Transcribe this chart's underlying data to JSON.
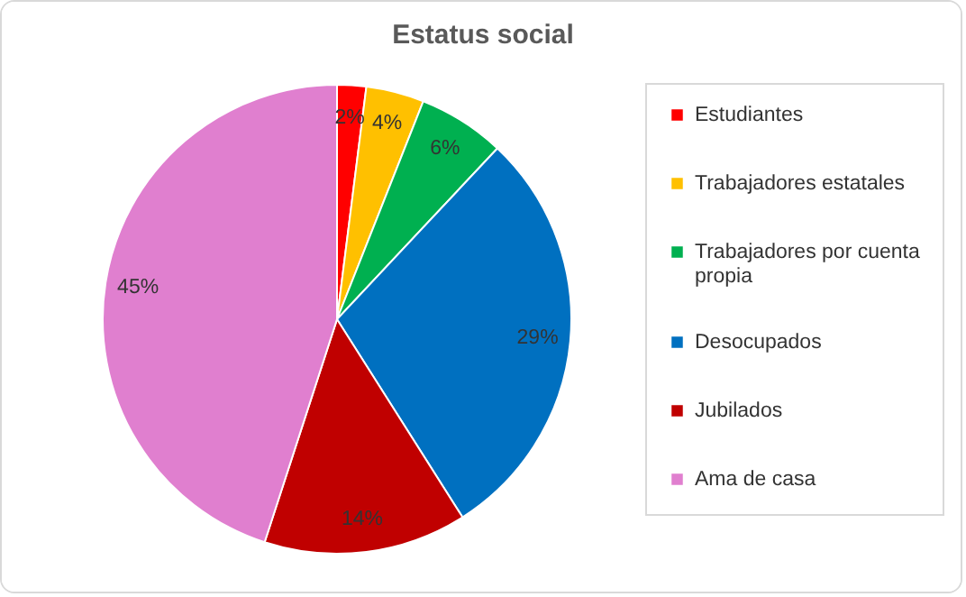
{
  "chart_data": {
    "type": "pie",
    "title": "Estatus social",
    "categories": [
      "Estudiantes",
      "Trabajadores estatales",
      "Trabajadores por cuenta propia",
      "Desocupados",
      "Jubilados",
      "Ama de casa"
    ],
    "values": [
      2,
      4,
      6,
      29,
      14,
      45
    ],
    "colors": [
      "#ff0000",
      "#ffc000",
      "#00b050",
      "#0070c0",
      "#c00000",
      "#e07fcf"
    ],
    "value_labels": [
      "2%",
      "4%",
      "6%",
      "29%",
      "14%",
      "45%"
    ],
    "legend": "right"
  }
}
